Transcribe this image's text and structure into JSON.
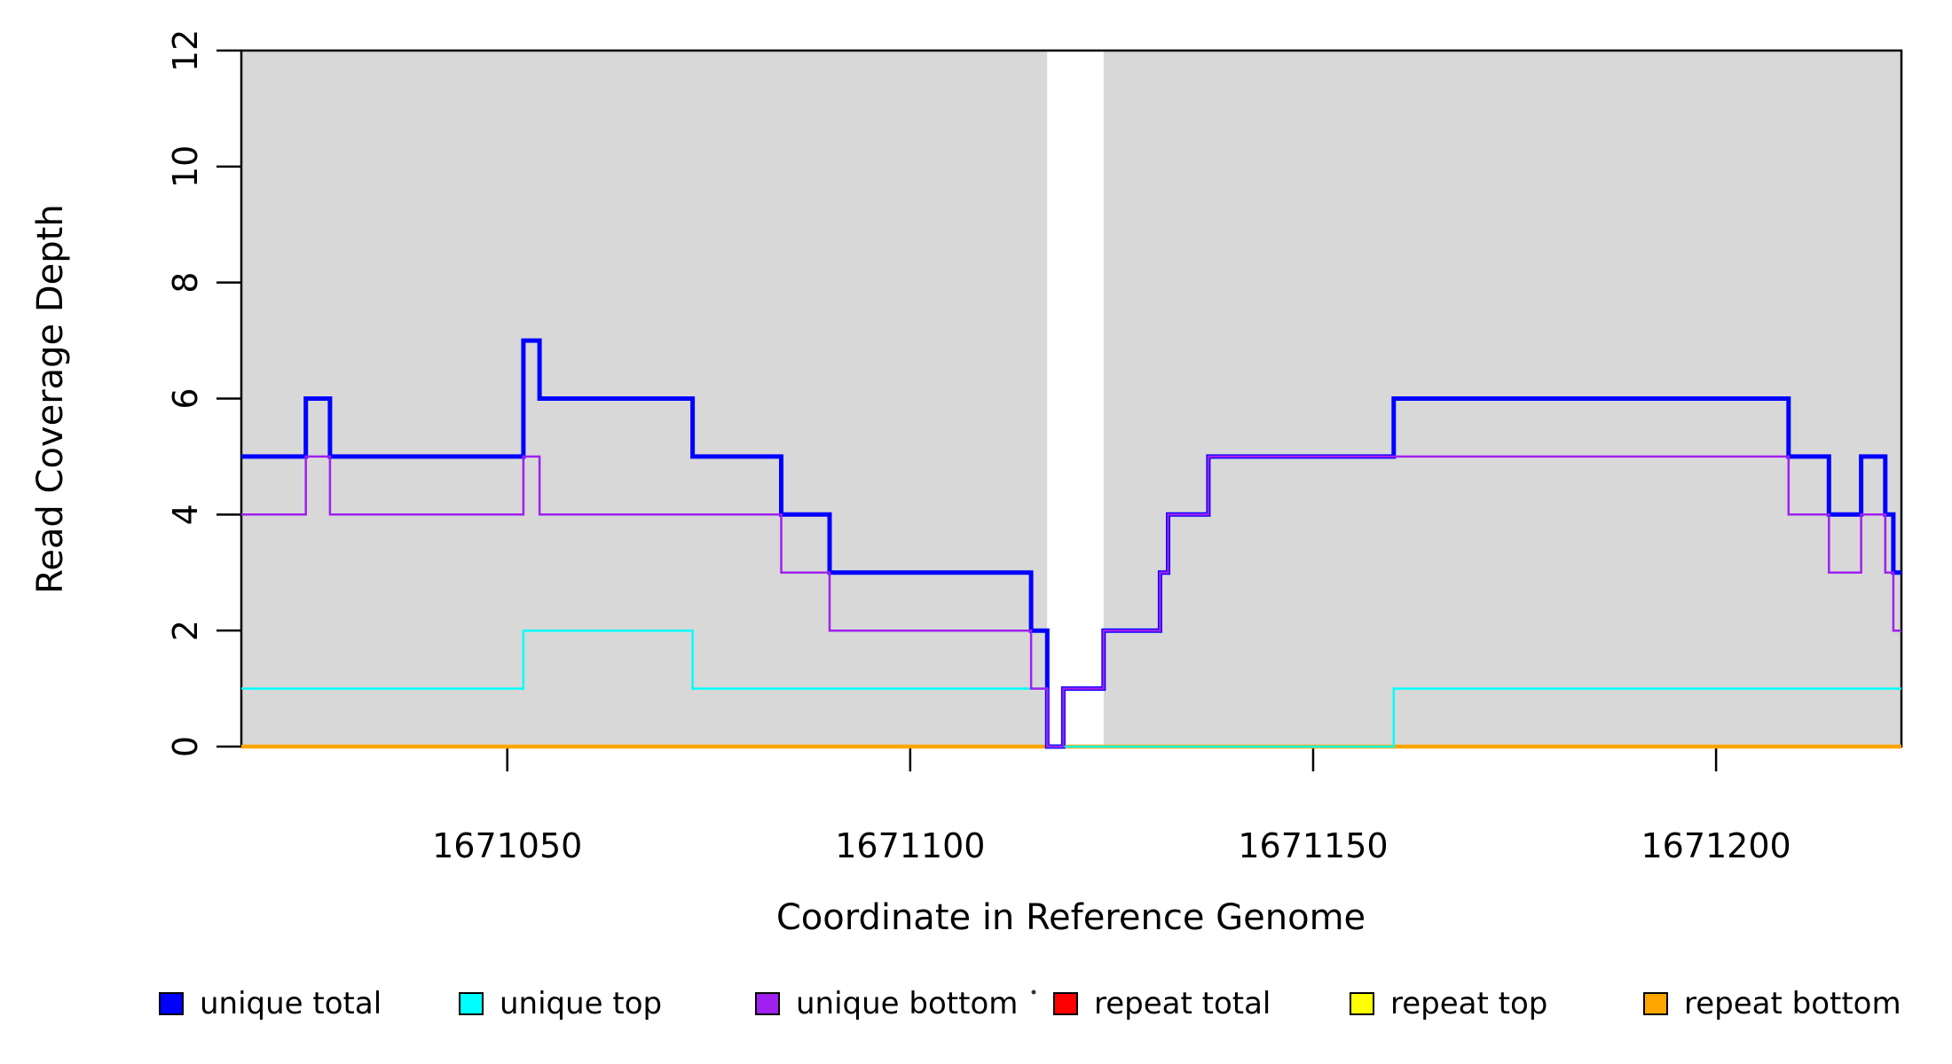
{
  "figure": {
    "background": "#ffffff",
    "plot_background": "#d8d8d8",
    "border_color": "#000000"
  },
  "chart_data": {
    "type": "line",
    "subtype": "step-after",
    "title": "",
    "xlabel": "Coordinate in Reference Genome",
    "ylabel": "Read Coverage Depth",
    "xlim": [
      1671017,
      1671223
    ],
    "ylim": [
      0,
      12
    ],
    "x_ticks": [
      1671050,
      1671100,
      1671150,
      1671200
    ],
    "y_ticks": [
      0,
      2,
      4,
      6,
      8,
      10,
      12
    ],
    "grid": false,
    "legend_position": "bottom",
    "shaded_regions": [
      {
        "x0": 1671017,
        "x1": 1671117,
        "color": "#d8d8d8"
      },
      {
        "x0": 1671124,
        "x1": 1671223,
        "color": "#d8d8d8"
      }
    ],
    "series": [
      {
        "name": "repeat total",
        "color": "#ff0000",
        "width": 4,
        "steps": [
          [
            1671017,
            0
          ]
        ]
      },
      {
        "name": "repeat top",
        "color": "#ffff00",
        "width": 4,
        "steps": [
          [
            1671017,
            0
          ]
        ]
      },
      {
        "name": "repeat bottom",
        "color": "#ffa500",
        "width": 4.5,
        "steps": [
          [
            1671017,
            0
          ]
        ]
      },
      {
        "name": "unique total",
        "color": "#0000ff",
        "width": 5,
        "steps": [
          [
            1671017,
            5
          ],
          [
            1671025,
            6
          ],
          [
            1671028,
            5
          ],
          [
            1671052,
            7
          ],
          [
            1671054,
            6
          ],
          [
            1671073,
            5
          ],
          [
            1671084,
            4
          ],
          [
            1671090,
            3
          ],
          [
            1671115,
            2
          ],
          [
            1671117,
            0
          ],
          [
            1671119,
            1
          ],
          [
            1671124,
            2
          ],
          [
            1671131,
            3
          ],
          [
            1671132,
            4
          ],
          [
            1671137,
            5
          ],
          [
            1671160,
            6
          ],
          [
            1671209,
            5
          ],
          [
            1671214,
            4
          ],
          [
            1671218,
            5
          ],
          [
            1671221,
            4
          ],
          [
            1671222,
            3
          ]
        ]
      },
      {
        "name": "unique top",
        "color": "#00ffff",
        "width": 2.5,
        "steps": [
          [
            1671017,
            1
          ],
          [
            1671052,
            2
          ],
          [
            1671073,
            1
          ],
          [
            1671117,
            0
          ],
          [
            1671160,
            1
          ]
        ]
      },
      {
        "name": "unique bottom",
        "color": "#a020f0",
        "width": 2.5,
        "steps": [
          [
            1671017,
            4
          ],
          [
            1671025,
            5
          ],
          [
            1671028,
            4
          ],
          [
            1671052,
            5
          ],
          [
            1671054,
            4
          ],
          [
            1671084,
            3
          ],
          [
            1671090,
            2
          ],
          [
            1671115,
            1
          ],
          [
            1671117,
            0
          ],
          [
            1671119,
            1
          ],
          [
            1671124,
            2
          ],
          [
            1671131,
            3
          ],
          [
            1671132,
            4
          ],
          [
            1671137,
            5
          ],
          [
            1671209,
            4
          ],
          [
            1671214,
            3
          ],
          [
            1671218,
            4
          ],
          [
            1671221,
            3
          ],
          [
            1671222,
            2
          ]
        ]
      }
    ],
    "legend": [
      {
        "label": "unique total",
        "color": "#0000ff"
      },
      {
        "label": "unique top",
        "color": "#00ffff"
      },
      {
        "label": "unique bottom",
        "color": "#a020f0"
      },
      {
        "label": "repeat total",
        "color": "#ff0000"
      },
      {
        "label": "repeat top",
        "color": "#ffff00"
      },
      {
        "label": "repeat bottom",
        "color": "#ffa500"
      }
    ]
  }
}
